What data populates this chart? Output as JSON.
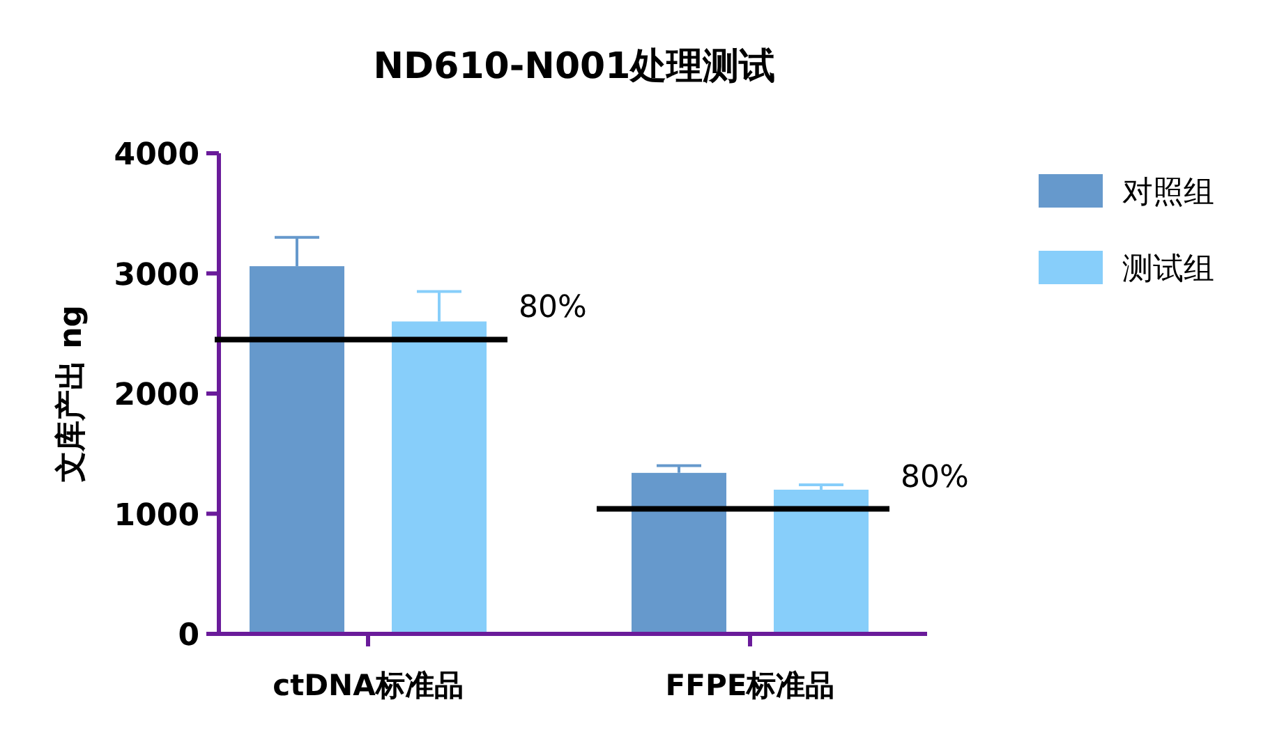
{
  "chart_data": {
    "type": "bar",
    "title": "ND610-N001处理测试",
    "ylabel": "文库产出 ng",
    "categories": [
      "ctDNA标准品",
      "FFPE标准品"
    ],
    "series": [
      {
        "name": "对照组",
        "color": "#6699cc",
        "values": [
          3060,
          1340
        ],
        "errors": [
          [
            3060,
            3300
          ],
          [
            1340,
            1400
          ]
        ]
      },
      {
        "name": "测试组",
        "color": "#87cefa",
        "values": [
          2600,
          1200
        ],
        "errors": [
          [
            2600,
            2850
          ],
          [
            1200,
            1240
          ]
        ]
      }
    ],
    "ylim": [
      0,
      4000
    ],
    "yticks": [
      0,
      1000,
      2000,
      3000,
      4000
    ],
    "ref_lines": [
      {
        "axis": "y",
        "value": 2450,
        "color": "#000000"
      },
      {
        "axis": "y",
        "value": 1040,
        "color": "#000000"
      }
    ],
    "annotations": [
      "80%",
      "80%"
    ],
    "grid": false,
    "legend": "right"
  }
}
